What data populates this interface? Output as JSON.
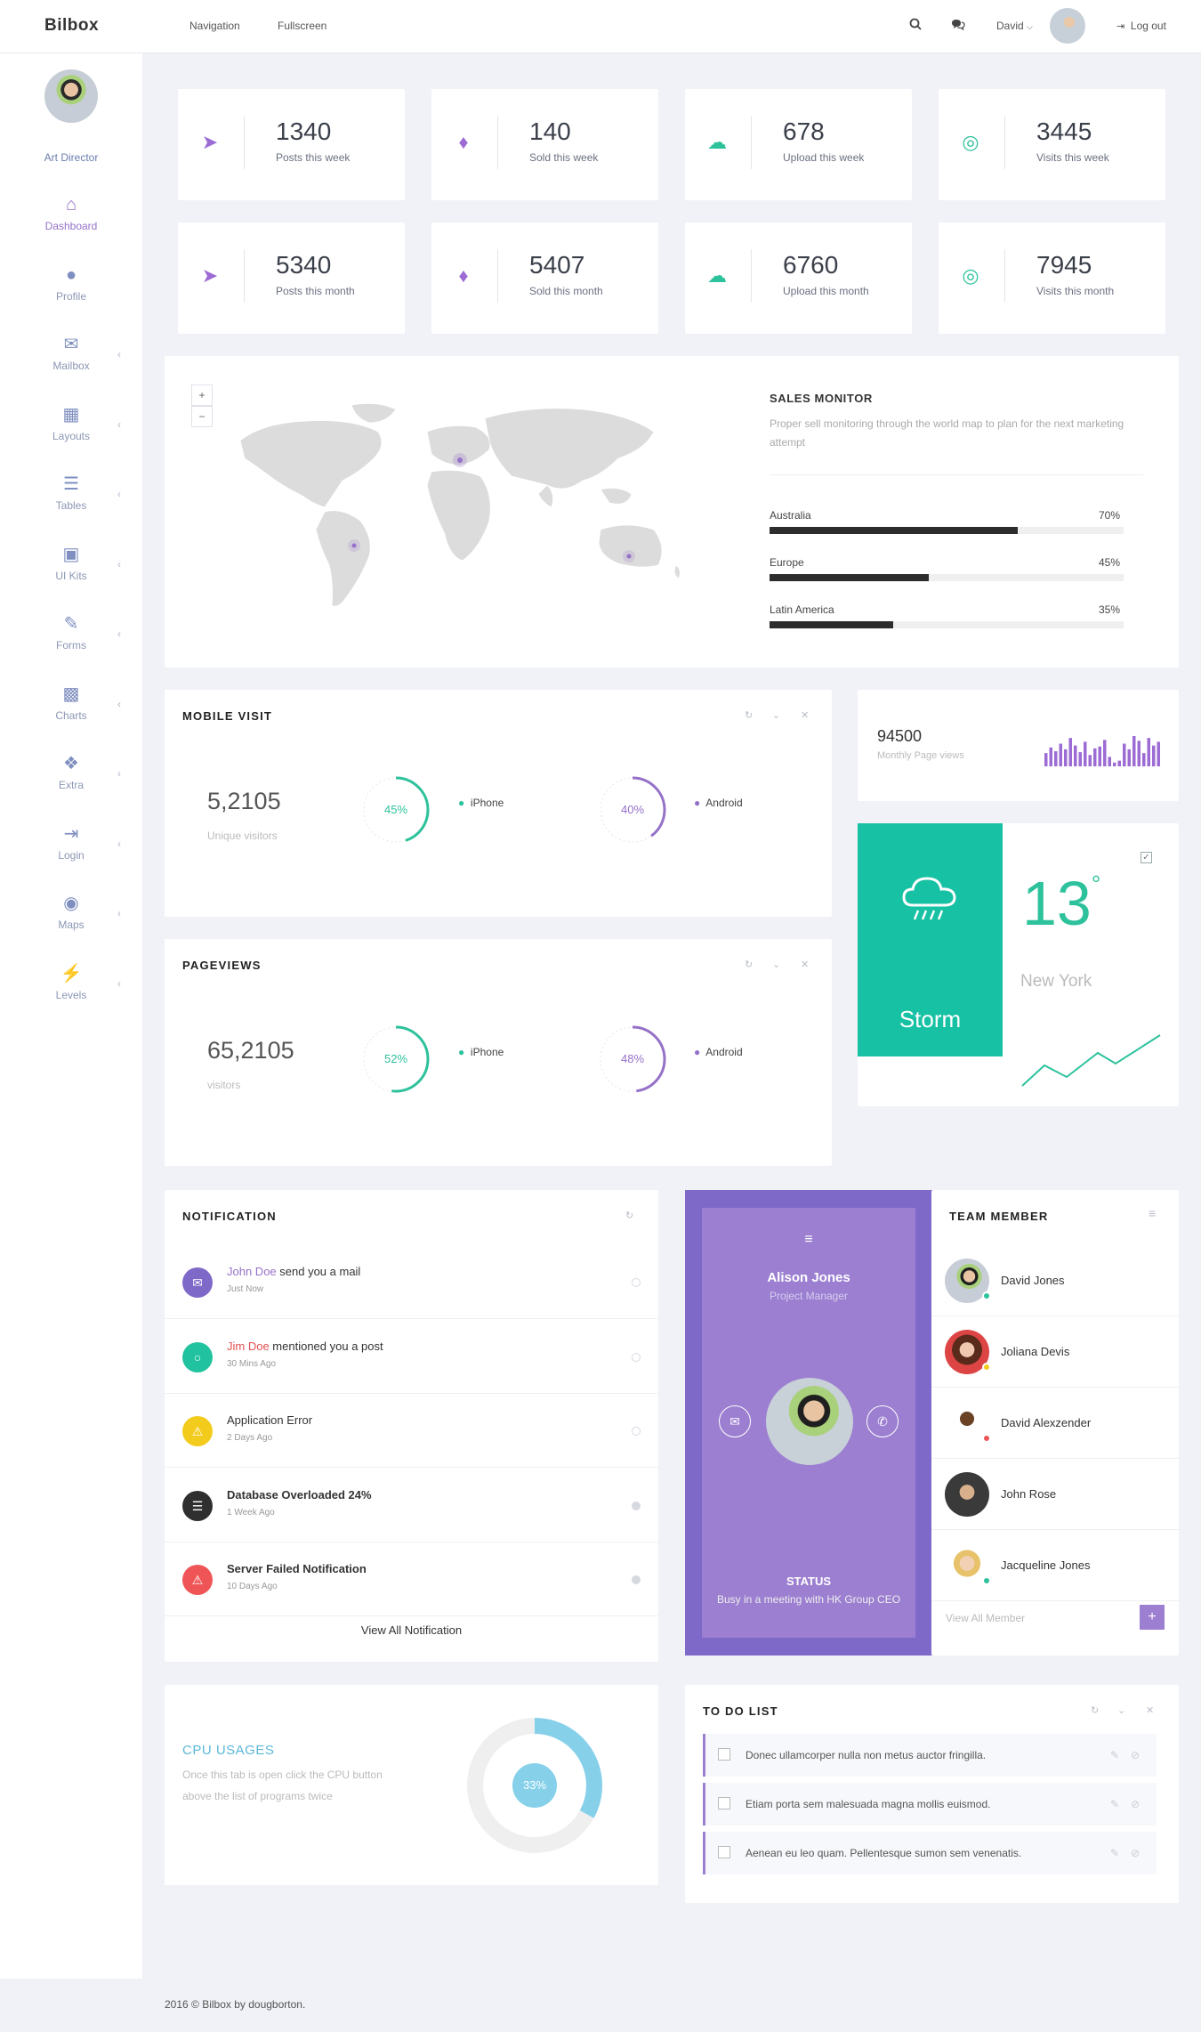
{
  "app": {
    "title": "Bilbox"
  },
  "topnav": {
    "navigation": "Navigation",
    "fullscreen": "Fullscreen",
    "user": "David",
    "logout": "Log out"
  },
  "sidebar": {
    "role": "Art Director",
    "items": [
      {
        "label": "Dashboard",
        "icon": "home-icon"
      },
      {
        "label": "Profile",
        "icon": "user-icon"
      },
      {
        "label": "Mailbox",
        "icon": "envelope-icon"
      },
      {
        "label": "Layouts",
        "icon": "grid-icon"
      },
      {
        "label": "Tables",
        "icon": "list-icon"
      },
      {
        "label": "UI Kits",
        "icon": "briefcase-icon"
      },
      {
        "label": "Forms",
        "icon": "edit-icon"
      },
      {
        "label": "Charts",
        "icon": "bar-chart-icon"
      },
      {
        "label": "Extra",
        "icon": "gift-icon"
      },
      {
        "label": "Login",
        "icon": "sign-in-icon"
      },
      {
        "label": "Maps",
        "icon": "map-marker-icon"
      },
      {
        "label": "Levels",
        "icon": "bolt-icon"
      }
    ]
  },
  "stats": [
    {
      "value": "1340",
      "label": "Posts this week",
      "icon": "paper-plane-icon",
      "color": "#9c6cd4"
    },
    {
      "value": "140",
      "label": "Sold this week",
      "icon": "tags-icon",
      "color": "#9c6cd4"
    },
    {
      "value": "678",
      "label": "Upload this week",
      "icon": "cloud-upload-icon",
      "color": "#2ec29c"
    },
    {
      "value": "3445",
      "label": "Visits this week",
      "icon": "target-icon",
      "color": "#2ec29c"
    },
    {
      "value": "5340",
      "label": "Posts this month",
      "icon": "paper-plane-icon",
      "color": "#9c6cd4"
    },
    {
      "value": "5407",
      "label": "Sold this month",
      "icon": "tags-icon",
      "color": "#9c6cd4"
    },
    {
      "value": "6760",
      "label": "Upload this month",
      "icon": "cloud-upload-icon",
      "color": "#2ec29c"
    },
    {
      "value": "7945",
      "label": "Visits this month",
      "icon": "target-icon",
      "color": "#2ec29c"
    }
  ],
  "sales": {
    "title": "SALES MONITOR",
    "desc": "Proper sell monitoring through the world map to plan for the next marketing attempt",
    "bars": [
      {
        "label": "Australia",
        "pct": "70%",
        "value": 0.7
      },
      {
        "label": "Europe",
        "pct": "45%",
        "value": 0.45
      },
      {
        "label": "Latin America",
        "pct": "35%",
        "value": 0.35
      }
    ],
    "zoom_in": "+",
    "zoom_out": "−"
  },
  "mobile": {
    "title": "MOBILE VISIT",
    "number": "5,2105",
    "sub": "Unique visitors",
    "ring1": {
      "label": "45%",
      "value": 0.45
    },
    "ring2": {
      "label": "40%",
      "value": 0.4
    },
    "legend1": "iPhone",
    "legend2": "Android"
  },
  "pageviews": {
    "title": "PAGEVIEWS",
    "number": "65,2105",
    "sub": "visitors",
    "ring1": {
      "label": "52%",
      "value": 0.52
    },
    "ring2": {
      "label": "48%",
      "value": 0.48
    },
    "legend1": "iPhone",
    "legend2": "Android"
  },
  "monthly": {
    "value": "94500",
    "label": "Monthly Page views",
    "bars": [
      14,
      20,
      16,
      24,
      18,
      30,
      22,
      15,
      26,
      12,
      19,
      21,
      28,
      10,
      4,
      6,
      24,
      18,
      32,
      27,
      14,
      30,
      22,
      26
    ]
  },
  "weather": {
    "condition": "Storm",
    "temp": "13",
    "degree": "°",
    "city": "New York"
  },
  "notifications": {
    "title": "NOTIFICATION",
    "items": [
      {
        "name": "John Doe",
        "text": " send you a mail",
        "time": "Just Now",
        "color": "#7e68c8",
        "icon": "envelope-icon"
      },
      {
        "name": "Jim Doe",
        "text": " mentioned you a post",
        "time": "30 Mins Ago",
        "color": "#20c29f",
        "icon": "comment-icon"
      },
      {
        "name": "",
        "text": "Application Error",
        "time": "2 Days Ago",
        "color": "#f3cb1c",
        "icon": "warning-icon"
      },
      {
        "name": "",
        "text": "Database Overloaded 24%",
        "time": "1 Week Ago",
        "color": "#2f2f2f",
        "icon": "database-icon"
      },
      {
        "name": "",
        "text": "Server Failed Notification",
        "time": "10 Days Ago",
        "color": "#ef5556",
        "icon": "warning-icon"
      }
    ],
    "footer": "View All Notification"
  },
  "profile": {
    "name": "Alison Jones",
    "role": "Project Manager",
    "status_title": "STATUS",
    "status": "Busy in a meeting with HK Group CEO"
  },
  "team": {
    "title": "TEAM MEMBER",
    "members": [
      {
        "name": "David Jones",
        "status": "#2ec29c"
      },
      {
        "name": "Joliana Devis",
        "status": "#f3cb1c"
      },
      {
        "name": "David Alexzender",
        "status": "#ef5556"
      },
      {
        "name": "John Rose",
        "status": ""
      },
      {
        "name": "Jacqueline Jones",
        "status": "#2ec29c"
      }
    ],
    "footer": "View All Member",
    "add": "+"
  },
  "cpu": {
    "title": "CPU USAGES",
    "desc1": "Once this tab is open click the CPU button",
    "desc2": "above the list of programs twice",
    "label": "33%",
    "value": 0.33
  },
  "todo": {
    "title": "TO DO LIST",
    "items": [
      "Donec ullamcorper nulla non metus auctor fringilla.",
      "Etiam porta sem malesuada magna mollis euismod.",
      "Aenean eu leo quam. Pellentesque sumon sem venenatis."
    ]
  },
  "footer": {
    "text": "2016 © Bilbox by dougborton."
  },
  "colors": {
    "accent": "#9571c8",
    "green": "#2ec29c",
    "teal": "#17c1a4"
  }
}
